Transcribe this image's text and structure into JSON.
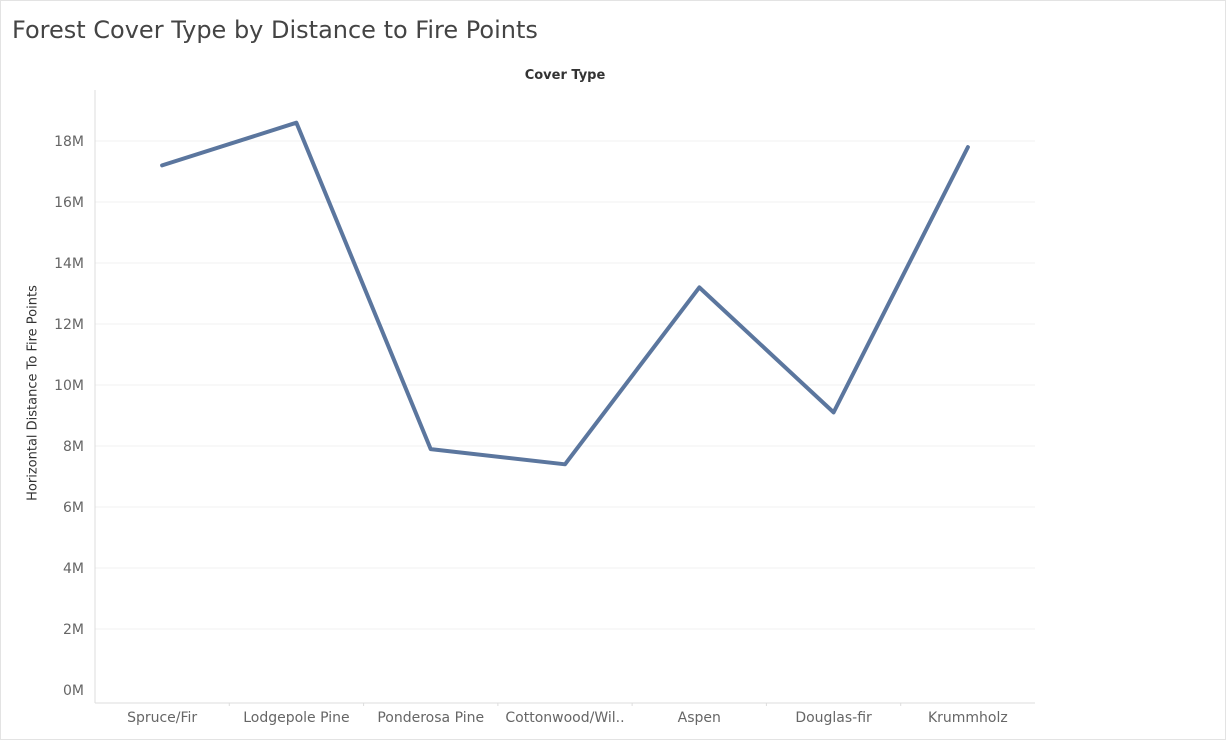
{
  "title": "Forest Cover Type by Distance to Fire Points",
  "column_header": "Cover Type",
  "colors": {
    "line": "#5b769e",
    "grid": "#f0f0f0",
    "tick_text": "#666666",
    "axis": "#dddddd"
  },
  "chart_data": {
    "type": "line",
    "title": "Forest Cover Type by Distance to Fire Points",
    "xlabel": "Cover Type",
    "ylabel": "Horizontal Distance To Fire Points",
    "categories": [
      "Spruce/Fir",
      "Lodgepole Pine",
      "Ponderosa Pine",
      "Cottonwood/Wil..",
      "Aspen",
      "Douglas-fir",
      "Krummholz"
    ],
    "values": [
      17200000,
      18600000,
      7900000,
      7400000,
      13200000,
      9100000,
      17800000
    ],
    "ylim": [
      0,
      19500000
    ],
    "yticks": [
      0,
      2000000,
      4000000,
      6000000,
      8000000,
      10000000,
      12000000,
      14000000,
      16000000,
      18000000
    ],
    "ytick_labels": [
      "0M",
      "2M",
      "4M",
      "6M",
      "8M",
      "10M",
      "12M",
      "14M",
      "16M",
      "18M"
    ],
    "grid": true,
    "legend": "none"
  }
}
